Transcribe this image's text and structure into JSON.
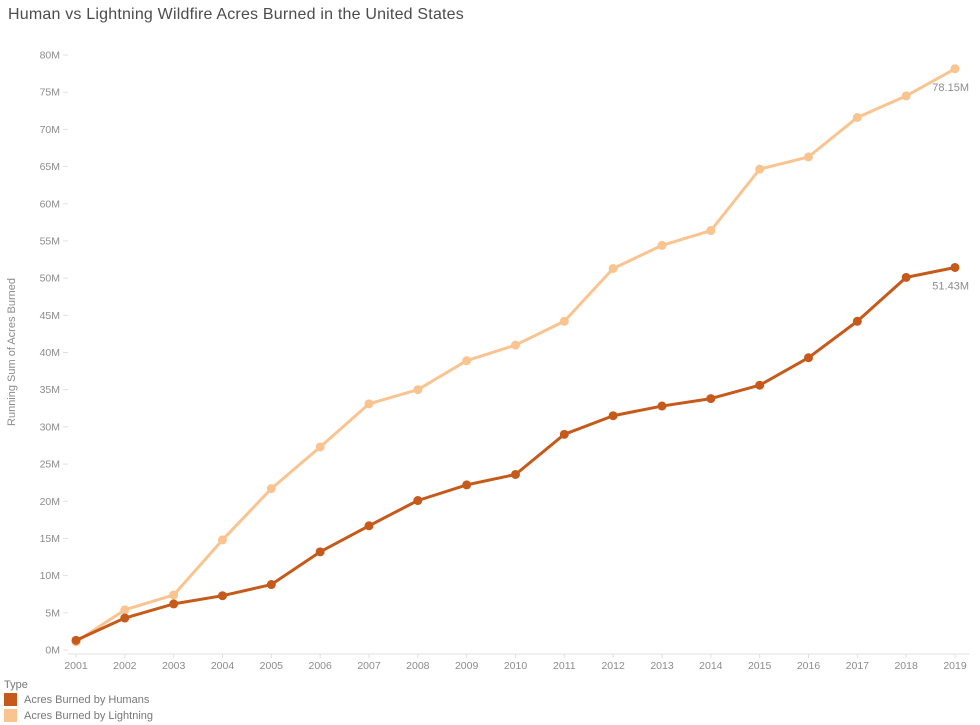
{
  "title": "Human vs Lightning Wildfire Acres Burned in the United States",
  "chart_data": {
    "type": "line",
    "title": "Human vs Lightning Wildfire Acres Burned in the United States",
    "xlabel": "",
    "ylabel": "Running Sum of Acres Burned",
    "legend_title": "Type",
    "legend_position": "bottom-left",
    "grid": false,
    "ylim": [
      0,
      80
    ],
    "yticks": [
      {
        "value": 0,
        "label": "0M"
      },
      {
        "value": 5,
        "label": "5M"
      },
      {
        "value": 10,
        "label": "10M"
      },
      {
        "value": 15,
        "label": "15M"
      },
      {
        "value": 20,
        "label": "20M"
      },
      {
        "value": 25,
        "label": "25M"
      },
      {
        "value": 30,
        "label": "30M"
      },
      {
        "value": 35,
        "label": "35M"
      },
      {
        "value": 40,
        "label": "40M"
      },
      {
        "value": 45,
        "label": "45M"
      },
      {
        "value": 50,
        "label": "50M"
      },
      {
        "value": 55,
        "label": "55M"
      },
      {
        "value": 60,
        "label": "60M"
      },
      {
        "value": 65,
        "label": "65M"
      },
      {
        "value": 70,
        "label": "70M"
      },
      {
        "value": 75,
        "label": "75M"
      },
      {
        "value": 80,
        "label": "80M"
      }
    ],
    "x": [
      2001,
      2002,
      2003,
      2004,
      2005,
      2006,
      2007,
      2008,
      2009,
      2010,
      2011,
      2012,
      2013,
      2014,
      2015,
      2016,
      2017,
      2018,
      2019
    ],
    "series": [
      {
        "name": "Acres Burned by Humans",
        "color": "#C55A1B",
        "values": [
          1.3,
          4.3,
          6.2,
          7.3,
          8.8,
          13.2,
          16.7,
          20.1,
          22.2,
          23.6,
          29.0,
          31.5,
          32.8,
          33.8,
          35.6,
          39.3,
          44.2,
          50.1,
          51.43
        ],
        "end_label": "51.43M"
      },
      {
        "name": "Acres Burned by Lightning",
        "color": "#FAC491",
        "values": [
          1.1,
          5.4,
          7.4,
          14.8,
          21.7,
          27.3,
          33.1,
          35.0,
          38.9,
          41.0,
          44.2,
          51.3,
          54.4,
          56.4,
          64.65,
          66.3,
          71.6,
          74.5,
          78.15
        ],
        "end_label": "78.15M"
      }
    ],
    "annotations": [
      "51.43M",
      "78.15M"
    ],
    "colors": {
      "title_text": "#4c4c4c",
      "axis_text": "#8c8c8c",
      "axis_line": "#e0e0e0",
      "end_label_text": "#8c8c8c"
    }
  }
}
